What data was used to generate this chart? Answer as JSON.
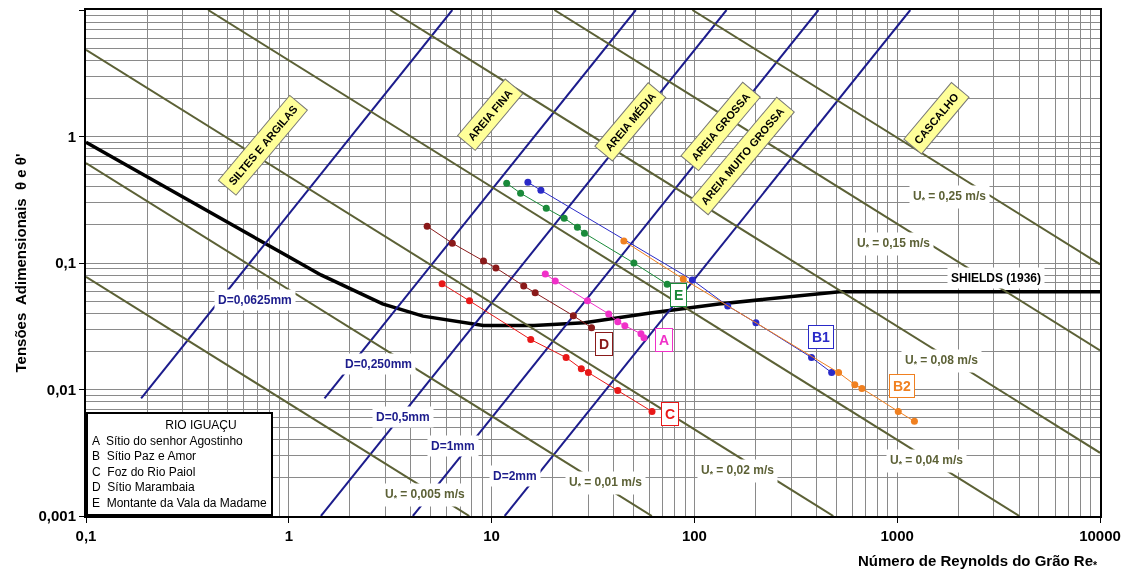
{
  "chart_data": {
    "type": "line",
    "xlabel": "Número de Reynolds do Grão Re$_{*}$",
    "ylabel": "Tensões  Adimensionais  θ e θ'",
    "xlim": [
      0.1,
      10000
    ],
    "ylim": [
      0.001,
      10
    ],
    "log": "xy",
    "grid": true,
    "xticks": [
      {
        "value": 0.1,
        "label": "0,1"
      },
      1,
      10,
      100,
      1000,
      10000
    ],
    "yticks": [
      {
        "value": 0.001,
        "label": "0,001"
      },
      {
        "value": 0.01,
        "label": "0,01"
      },
      {
        "value": 0.1,
        "label": "0,1"
      },
      1,
      {
        "value": 10,
        "label": null
      }
    ],
    "annotations": [
      "SILTES E ARGILAS",
      "AREIA FINA",
      "AREIA MÉDIA",
      "AREIA GROSSA",
      "AREIA MUITO GROSSA",
      "CASCALHO",
      "RIO IGUAÇU",
      "A  Sítio do senhor Agostinho",
      "B  Sítio Paz e Amor",
      "C  Foz do Rio Paiol",
      "D  Sítio Marambaia",
      "E  Montante da Vala da Madame"
    ],
    "series": [
      {
        "name": "SHIELDS (1936)",
        "color": "#000000",
        "marker": "none",
        "x": [
          0.1,
          1.44,
          2.9,
          4.59,
          9.1,
          16.2,
          28.7,
          61.8,
          132,
          520,
          10000
        ],
        "values": [
          0.9,
          0.0805,
          0.0475,
          0.038,
          0.032,
          0.032,
          0.0337,
          0.0404,
          0.0475,
          0.0592,
          0.0592
        ]
      },
      {
        "name": "D=0,0625mm",
        "color": "#1c1c8c",
        "marker": "none",
        "x": [
          0.187,
          6.4
        ],
        "values": [
          0.0085,
          10
        ]
      },
      {
        "name": "D=0,250mm",
        "color": "#1c1c8c",
        "marker": "none",
        "x": [
          1.5,
          51.4
        ],
        "values": [
          0.00852,
          10
        ]
      },
      {
        "name": "D=0,5mm",
        "color": "#1c1c8c",
        "marker": "none",
        "x": [
          1.44,
          144
        ],
        "values": [
          0.001,
          10
        ]
      },
      {
        "name": "D=1mm",
        "color": "#1c1c8c",
        "marker": "none",
        "x": [
          4.09,
          409
        ],
        "values": [
          0.001,
          10
        ]
      },
      {
        "name": "D=2mm",
        "color": "#1c1c8c",
        "marker": "none",
        "x": [
          11.6,
          1160
        ],
        "values": [
          0.001,
          10
        ]
      },
      {
        "name": "U$_{*}$ = 0,005 m/s",
        "color": "#5c6136",
        "marker": "none",
        "x": [
          0.1,
          7.76
        ],
        "values": [
          0.0776,
          0.001
        ]
      },
      {
        "name": "U$_{*}$ = 0,01 m/s",
        "color": "#5c6136",
        "marker": "none",
        "x": [
          0.1,
          61.7
        ],
        "values": [
          0.617,
          0.001
        ]
      },
      {
        "name": "U$_{*}$ = 0,02 m/s",
        "color": "#5c6136",
        "marker": "none",
        "x": [
          0.1,
          484
        ],
        "values": [
          4.84,
          0.001
        ]
      },
      {
        "name": "U$_{*}$ = 0,04 m/s",
        "color": "#5c6136",
        "marker": "none",
        "x": [
          0.4,
          4000
        ],
        "values": [
          10,
          0.001
        ]
      },
      {
        "name": "U$_{*}$ = 0,08 m/s",
        "color": "#5c6136",
        "marker": "none",
        "x": [
          3.16,
          10000
        ],
        "values": [
          10,
          0.00316
        ]
      },
      {
        "name": "U$_{*}$ = 0,15 m/s",
        "color": "#5c6136",
        "marker": "none",
        "x": [
          20.4,
          10000
        ],
        "values": [
          10,
          0.0204
        ]
      },
      {
        "name": "U$_{*}$ = 0,25 m/s",
        "color": "#5c6136",
        "marker": "none",
        "x": [
          97.7,
          10000
        ],
        "values": [
          10,
          0.0977
        ]
      },
      {
        "name": "A",
        "color": "#f030c8",
        "marker": "circle",
        "x": [
          18.4,
          20.6,
          29.7,
          37.8,
          41.9,
          45.4,
          54.5,
          56.4
        ],
        "values": [
          0.0818,
          0.0721,
          0.0502,
          0.0396,
          0.0343,
          0.0319,
          0.0276,
          0.0256
        ]
      },
      {
        "name": "B1",
        "color": "#2a2ac8",
        "marker": "circle",
        "x": [
          15.1,
          17.5,
          97.7,
          146,
          201,
          378,
          475
        ],
        "values": [
          0.434,
          0.376,
          0.0734,
          0.0458,
          0.0337,
          0.0179,
          0.0136
        ]
      },
      {
        "name": "B2",
        "color": "#f08020",
        "marker": "circle",
        "x": [
          44.9,
          88.1,
          514,
          618,
          670,
          1012,
          1216
        ],
        "values": [
          0.149,
          0.0748,
          0.0136,
          0.0109,
          0.0102,
          0.00671,
          0.0056
        ]
      },
      {
        "name": "C",
        "color": "#e81818",
        "marker": "circle",
        "x": [
          5.7,
          7.78,
          15.6,
          23.3,
          27.7,
          30.0,
          41.9,
          61.8
        ],
        "values": [
          0.0684,
          0.0502,
          0.0248,
          0.0179,
          0.0146,
          0.0136,
          0.0098,
          0.0067
        ]
      },
      {
        "name": "D",
        "color": "#8a1a1a",
        "marker": "circle",
        "x": [
          4.81,
          6.4,
          9.12,
          10.5,
          14.4,
          16.4,
          25.3,
          31.1
        ],
        "values": [
          0.195,
          0.1435,
          0.1038,
          0.0914,
          0.0659,
          0.0581,
          0.0383,
          0.0308
        ]
      },
      {
        "name": "E",
        "color": "#1a8a3a",
        "marker": "circle",
        "x": [
          11.87,
          13.9,
          18.6,
          22.8,
          26.5,
          28.7,
          50.3,
          73.4
        ],
        "values": [
          0.427,
          0.356,
          0.271,
          0.226,
          0.192,
          0.172,
          0.1,
          0.068
        ]
      }
    ]
  }
}
